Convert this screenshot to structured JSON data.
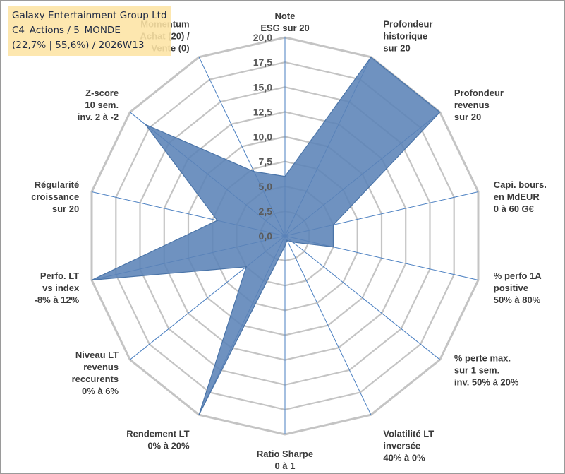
{
  "title_box": {
    "line1": "Galaxy Entertainment Group Ltd",
    "line2": "C4_Actions / 5_MONDE",
    "line3": "(22,7% | 55,6%) / 2026W13"
  },
  "chart_data": {
    "type": "radar",
    "ylim": [
      0,
      20
    ],
    "tick_step": 2.5,
    "tick_labels": [
      "0,0",
      "2,5",
      "5,0",
      "7,5",
      "10,0",
      "12,5",
      "15,0",
      "17,5",
      "20,0"
    ],
    "grid": true,
    "colors": {
      "fill": "#5b83b7",
      "stroke": "#4a74a8",
      "grid": "#c4c4c4",
      "spoke": "#4a7fc1"
    },
    "axes": [
      {
        "label": [
          "Note",
          "ESG sur 20"
        ]
      },
      {
        "label": [
          "Profondeur",
          "historique",
          "sur 20"
        ]
      },
      {
        "label": [
          "Profondeur",
          "revenus",
          "sur 20"
        ]
      },
      {
        "label": [
          "Capi. bours.",
          "en MdEUR",
          "0 à 60 G€"
        ]
      },
      {
        "label": [
          "% perfo 1A",
          "positive",
          "50% à 80%"
        ]
      },
      {
        "label": [
          "% perte max.",
          "sur 1 sem.",
          "inv. 50% à 20%"
        ]
      },
      {
        "label": [
          "Volatilité LT",
          "inversée",
          "40% à 0%"
        ]
      },
      {
        "label": [
          "Ratio Sharpe",
          "0 à 1"
        ]
      },
      {
        "label": [
          "Rendement LT",
          "0% à 20%"
        ]
      },
      {
        "label": [
          "Niveau LT",
          "revenus",
          "reccurents",
          "0% à 6%"
        ]
      },
      {
        "label": [
          "Perfo. LT",
          "vs index",
          "-8% à 12%"
        ]
      },
      {
        "label": [
          "Régularité",
          "croissance",
          "sur 20"
        ]
      },
      {
        "label": [
          "Z-score",
          "10 sem.",
          "inv. 2 à -2"
        ]
      },
      {
        "label": [
          "Momentum",
          "Achat (20) /",
          "Vente (0)"
        ]
      }
    ],
    "series": [
      {
        "values": [
          6.0,
          20.0,
          20.0,
          5.0,
          5.0,
          1.0,
          0.5,
          1.0,
          20.0,
          5.0,
          20.0,
          7.0,
          18.0,
          7.2
        ]
      }
    ]
  }
}
